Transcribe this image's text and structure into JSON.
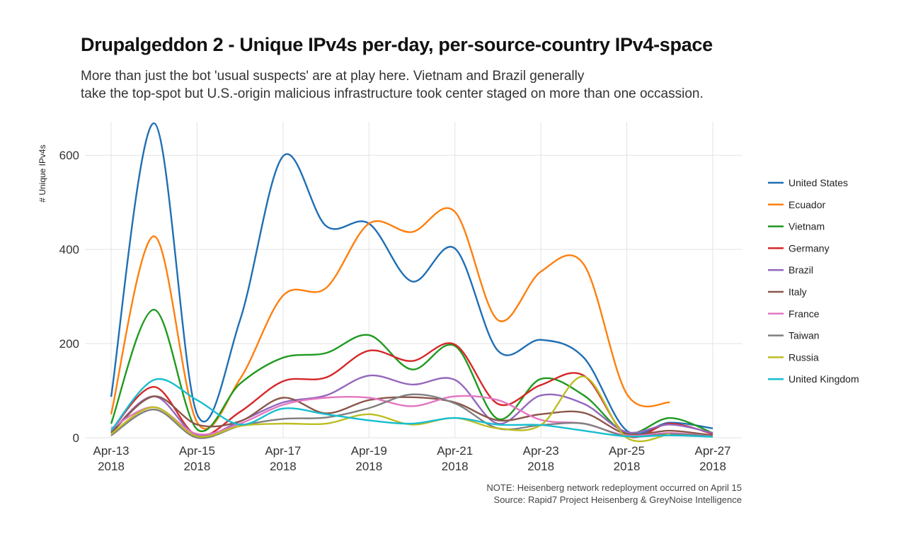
{
  "chart_data": {
    "type": "line",
    "title": "Drupalgeddon 2 - Unique IPv4s per-day, per-source-country IPv4-space",
    "subtitle": [
      "More than just the bot 'usual suspects' are at play here. Vietnam and Brazil generally",
      "take the top-spot but U.S.-origin malicious infrastructure took center staged on more than one occassion."
    ],
    "xlabel": "",
    "ylabel": "# Unique IPv4s",
    "notes": [
      "NOTE: Heisenberg network redeployment occurred on April 15",
      "Source: Rapid7 Project Heisenberg & GreyNoise Intelligence"
    ],
    "x": [
      "2018-04-13",
      "2018-04-14",
      "2018-04-15",
      "2018-04-16",
      "2018-04-17",
      "2018-04-18",
      "2018-04-19",
      "2018-04-20",
      "2018-04-21",
      "2018-04-22",
      "2018-04-23",
      "2018-04-24",
      "2018-04-25",
      "2018-04-26",
      "2018-04-27"
    ],
    "x_ticks": [
      {
        "date": "2018-04-13",
        "label": [
          "Apr-13",
          "2018"
        ]
      },
      {
        "date": "2018-04-15",
        "label": [
          "Apr-15",
          "2018"
        ]
      },
      {
        "date": "2018-04-17",
        "label": [
          "Apr-17",
          "2018"
        ]
      },
      {
        "date": "2018-04-19",
        "label": [
          "Apr-19",
          "2018"
        ]
      },
      {
        "date": "2018-04-21",
        "label": [
          "Apr-21",
          "2018"
        ]
      },
      {
        "date": "2018-04-23",
        "label": [
          "Apr-23",
          "2018"
        ]
      },
      {
        "date": "2018-04-25",
        "label": [
          "Apr-25",
          "2018"
        ]
      },
      {
        "date": "2018-04-27",
        "label": [
          "Apr-27",
          "2018"
        ]
      }
    ],
    "y_ticks": [
      0,
      200,
      400,
      600
    ],
    "ylim": [
      0,
      680
    ],
    "grid": true,
    "legend_position": "right",
    "smoothed": true,
    "series": [
      {
        "name": "United States",
        "color": "#1f6fb4",
        "values": [
          87,
          668,
          50,
          250,
          598,
          450,
          455,
          332,
          402,
          185,
          208,
          170,
          15,
          32,
          20
        ]
      },
      {
        "name": "Ecuador",
        "color": "#ff7f0e",
        "values": [
          50,
          428,
          33,
          125,
          302,
          318,
          455,
          437,
          480,
          250,
          353,
          368,
          93,
          75,
          null
        ]
      },
      {
        "name": "Vietnam",
        "color": "#1f9a1f",
        "values": [
          30,
          272,
          18,
          115,
          170,
          180,
          218,
          145,
          195,
          40,
          125,
          90,
          10,
          42,
          10
        ]
      },
      {
        "name": "Germany",
        "color": "#d62728",
        "values": [
          15,
          108,
          5,
          55,
          120,
          128,
          185,
          163,
          198,
          72,
          112,
          132,
          5,
          30,
          8
        ]
      },
      {
        "name": "Brazil",
        "color": "#9467bd",
        "values": [
          12,
          88,
          5,
          35,
          75,
          90,
          132,
          113,
          123,
          30,
          90,
          72,
          12,
          28,
          10
        ]
      },
      {
        "name": "Italy",
        "color": "#8c564b",
        "values": [
          10,
          88,
          28,
          35,
          85,
          52,
          80,
          86,
          75,
          37,
          50,
          53,
          8,
          15,
          5
        ]
      },
      {
        "name": "France",
        "color": "#e377c2",
        "values": [
          20,
          65,
          8,
          30,
          70,
          85,
          85,
          67,
          88,
          80,
          38,
          30,
          5,
          10,
          3
        ]
      },
      {
        "name": "Taiwan",
        "color": "#7f7f7f",
        "values": [
          5,
          60,
          0,
          25,
          40,
          43,
          63,
          92,
          73,
          20,
          27,
          30,
          3,
          8,
          3
        ]
      },
      {
        "name": "Russia",
        "color": "#bcbd22",
        "values": [
          8,
          65,
          3,
          25,
          30,
          30,
          50,
          28,
          42,
          20,
          27,
          130,
          0,
          8,
          null
        ]
      },
      {
        "name": "United Kingdom",
        "color": "#17becf",
        "values": [
          15,
          123,
          80,
          28,
          62,
          50,
          37,
          30,
          42,
          28,
          27,
          15,
          3,
          5,
          2
        ]
      }
    ]
  }
}
